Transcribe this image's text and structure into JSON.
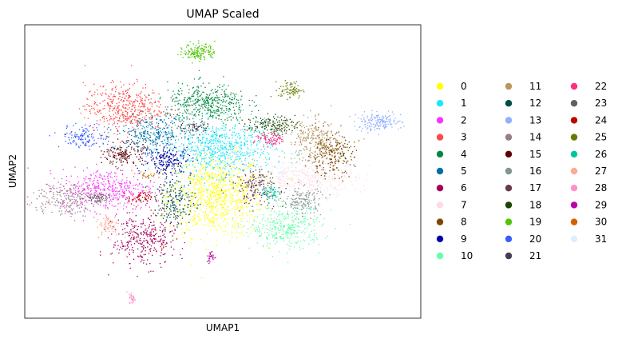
{
  "chart_data": {
    "type": "scatter",
    "title": "UMAP Scaled",
    "xlabel": "UMAP1",
    "ylabel": "UMAP2",
    "x_ticks": "none",
    "y_ticks": "none",
    "grid": false,
    "legend": "right",
    "legend_columns": 3,
    "xlim": [
      0,
      100
    ],
    "ylim": [
      0,
      100
    ],
    "series": [
      {
        "name": "0",
        "color": "#ffff00",
        "clusters": [
          {
            "x": 48,
            "y": 42,
            "sx": 6,
            "sy": 7,
            "n": 900
          }
        ]
      },
      {
        "name": "1",
        "color": "#1ce6ff",
        "clusters": [
          {
            "x": 49,
            "y": 58,
            "sx": 7,
            "sy": 4.5,
            "n": 700
          }
        ]
      },
      {
        "name": "2",
        "color": "#ff34ff",
        "clusters": [
          {
            "x": 21,
            "y": 44,
            "sx": 6,
            "sy": 3.5,
            "n": 450
          }
        ]
      },
      {
        "name": "3",
        "color": "#ff4a46",
        "clusters": [
          {
            "x": 25,
            "y": 72,
            "sx": 5,
            "sy": 4,
            "n": 450
          }
        ]
      },
      {
        "name": "4",
        "color": "#008941",
        "clusters": [
          {
            "x": 46,
            "y": 73,
            "sx": 5,
            "sy": 3.5,
            "n": 450
          }
        ]
      },
      {
        "name": "5",
        "color": "#006fa6",
        "clusters": [
          {
            "x": 32,
            "y": 63,
            "sx": 4.5,
            "sy": 3,
            "n": 300
          }
        ]
      },
      {
        "name": "6",
        "color": "#a30059",
        "clusters": [
          {
            "x": 30,
            "y": 27,
            "sx": 4,
            "sy": 4.5,
            "n": 350
          }
        ]
      },
      {
        "name": "7",
        "color": "#ffdbe5",
        "clusters": [
          {
            "x": 72,
            "y": 48,
            "sx": 6,
            "sy": 3,
            "n": 350
          }
        ]
      },
      {
        "name": "8",
        "color": "#7a4900",
        "clusters": [
          {
            "x": 77,
            "y": 56,
            "sx": 3,
            "sy": 3.5,
            "n": 250
          }
        ]
      },
      {
        "name": "9",
        "color": "#0000a6",
        "clusters": [
          {
            "x": 36,
            "y": 54,
            "sx": 3,
            "sy": 2.5,
            "n": 200
          }
        ]
      },
      {
        "name": "10",
        "color": "#63ffac",
        "clusters": [
          {
            "x": 66,
            "y": 31,
            "sx": 4.5,
            "sy": 3.5,
            "n": 350
          }
        ]
      },
      {
        "name": "11",
        "color": "#b79762",
        "clusters": [
          {
            "x": 73,
            "y": 61,
            "sx": 3.5,
            "sy": 3.5,
            "n": 250
          }
        ]
      },
      {
        "name": "12",
        "color": "#004d43",
        "clusters": [
          {
            "x": 38,
            "y": 40,
            "sx": 2.5,
            "sy": 4,
            "n": 200
          }
        ]
      },
      {
        "name": "13",
        "color": "#8fb0ff",
        "clusters": [
          {
            "x": 89,
            "y": 67,
            "sx": 3,
            "sy": 1.5,
            "n": 180
          }
        ]
      },
      {
        "name": "14",
        "color": "#997d87",
        "clusters": [
          {
            "x": 10,
            "y": 41,
            "sx": 4,
            "sy": 3,
            "n": 220
          }
        ]
      },
      {
        "name": "15",
        "color": "#5a0007",
        "clusters": [
          {
            "x": 25,
            "y": 56,
            "sx": 2.5,
            "sy": 2,
            "n": 160
          }
        ]
      },
      {
        "name": "16",
        "color": "#809693",
        "clusters": [
          {
            "x": 70,
            "y": 40,
            "sx": 2.5,
            "sy": 2.5,
            "n": 160
          }
        ]
      },
      {
        "name": "17",
        "color": "#6a3a4c",
        "clusters": [
          {
            "x": 58,
            "y": 45,
            "sx": 3,
            "sy": 3,
            "n": 180
          }
        ]
      },
      {
        "name": "18",
        "color": "#1b4400",
        "clusters": [
          {
            "x": 62,
            "y": 66,
            "sx": 3,
            "sy": 1.5,
            "n": 150
          }
        ]
      },
      {
        "name": "19",
        "color": "#4fc601",
        "clusters": [
          {
            "x": 44,
            "y": 91,
            "sx": 2,
            "sy": 1.5,
            "n": 150
          }
        ]
      },
      {
        "name": "20",
        "color": "#3b5dff",
        "clusters": [
          {
            "x": 15,
            "y": 62,
            "sx": 3,
            "sy": 2,
            "n": 140
          }
        ]
      },
      {
        "name": "21",
        "color": "#4a3b53",
        "clusters": [
          {
            "x": 43,
            "y": 65,
            "sx": 2,
            "sy": 1,
            "n": 60
          }
        ]
      },
      {
        "name": "22",
        "color": "#ff2f80",
        "clusters": [
          {
            "x": 62,
            "y": 61,
            "sx": 2,
            "sy": 1.2,
            "n": 90
          }
        ]
      },
      {
        "name": "23",
        "color": "#61615a",
        "clusters": [
          {
            "x": 18,
            "y": 41,
            "sx": 1.5,
            "sy": 1,
            "n": 60
          }
        ]
      },
      {
        "name": "24",
        "color": "#ba0900",
        "clusters": [
          {
            "x": 29,
            "y": 41,
            "sx": 1.5,
            "sy": 1,
            "n": 60
          }
        ]
      },
      {
        "name": "25",
        "color": "#6b7900",
        "clusters": [
          {
            "x": 67,
            "y": 78,
            "sx": 1.5,
            "sy": 1.5,
            "n": 80
          }
        ]
      },
      {
        "name": "26",
        "color": "#00c2a0",
        "clusters": [
          {
            "x": 62,
            "y": 43,
            "sx": 1.2,
            "sy": 1.5,
            "n": 60
          }
        ]
      },
      {
        "name": "27",
        "color": "#ffaa92",
        "clusters": [
          {
            "x": 21,
            "y": 32,
            "sx": 1.5,
            "sy": 2,
            "n": 70
          }
        ]
      },
      {
        "name": "28",
        "color": "#ff90c9",
        "clusters": [
          {
            "x": 27,
            "y": 7,
            "sx": 0.4,
            "sy": 1,
            "n": 30
          }
        ]
      },
      {
        "name": "29",
        "color": "#b903aa",
        "clusters": [
          {
            "x": 47,
            "y": 21,
            "sx": 0.6,
            "sy": 1,
            "n": 30
          }
        ]
      },
      {
        "name": "30",
        "color": "#d16100",
        "clusters": [
          {
            "x": 31,
            "y": 49,
            "sx": 1,
            "sy": 1,
            "n": 20
          }
        ]
      },
      {
        "name": "31",
        "color": "#ddefff",
        "clusters": [
          {
            "x": 65,
            "y": 50,
            "sx": 1.5,
            "sy": 1,
            "n": 25
          }
        ]
      }
    ]
  }
}
